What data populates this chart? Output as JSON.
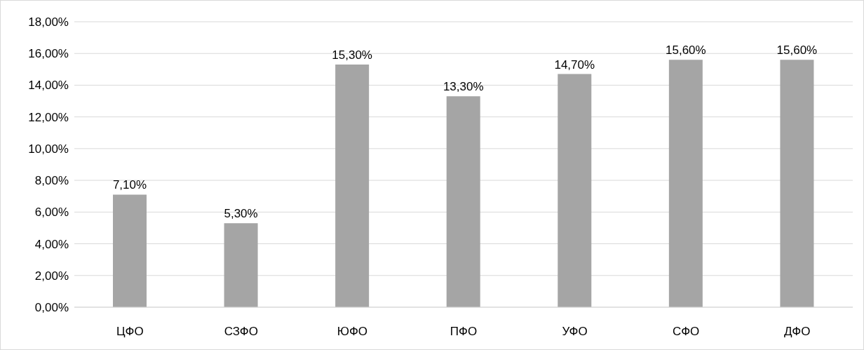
{
  "chart_data": {
    "type": "bar",
    "categories": [
      "ЦФО",
      "СЗФО",
      "ЮФО",
      "ПФО",
      "УФО",
      "СФО",
      "ДФО"
    ],
    "values": [
      7.1,
      5.3,
      15.3,
      13.3,
      14.7,
      15.6,
      15.6
    ],
    "color": "#a5a5a5",
    "value_labels": [
      "7,10%",
      "5,30%",
      "15,30%",
      "13,30%",
      "14,70%",
      "15,60%",
      "15,60%"
    ],
    "ylim": [
      0,
      18
    ],
    "yticks": [
      {
        "value": 0,
        "label": "0,00%"
      },
      {
        "value": 2,
        "label": "2,00%"
      },
      {
        "value": 4,
        "label": "4,00%"
      },
      {
        "value": 6,
        "label": "6,00%"
      },
      {
        "value": 8,
        "label": "8,00%"
      },
      {
        "value": 10,
        "label": "10,00%"
      },
      {
        "value": 12,
        "label": "12,00%"
      },
      {
        "value": 14,
        "label": "14,00%"
      },
      {
        "value": 16,
        "label": "16,00%"
      },
      {
        "value": 18,
        "label": "18,00%"
      }
    ],
    "grid": "y",
    "legend": false
  }
}
